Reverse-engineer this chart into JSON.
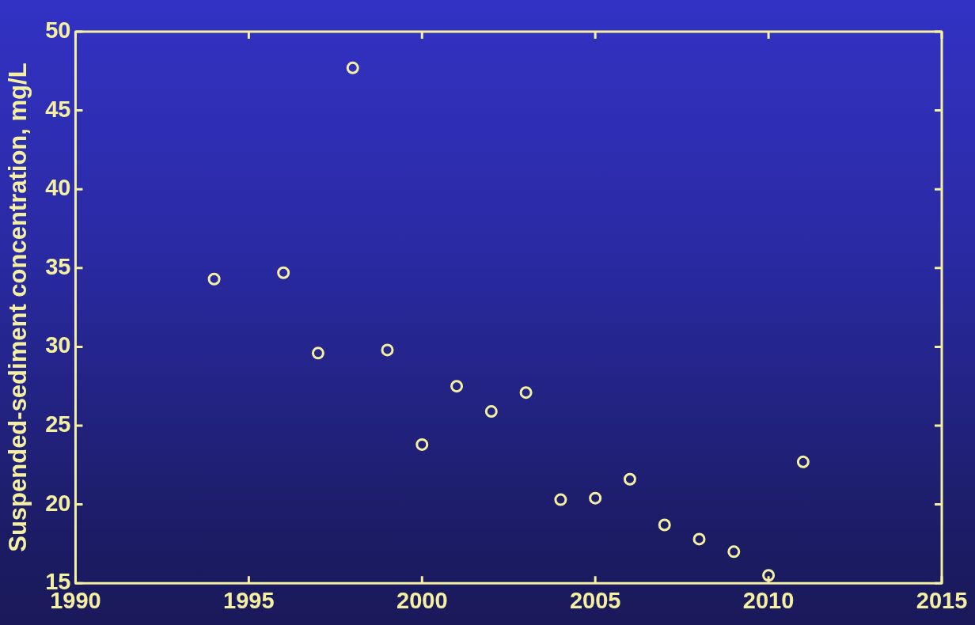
{
  "chart_data": {
    "type": "scatter",
    "ylabel": "Suspended-sediment concentration, mg/L",
    "x": [
      1994,
      1996,
      1997,
      1998,
      1999,
      2000,
      2001,
      2002,
      2003,
      2004,
      2005,
      2006,
      2007,
      2008,
      2009,
      2010,
      2011
    ],
    "series": [
      {
        "color": "#f5f0a0",
        "values": [
          34.3,
          34.7,
          29.6,
          47.7,
          29.8,
          23.8,
          27.5,
          25.9,
          27.1,
          20.3,
          20.4,
          21.6,
          18.7,
          17.8,
          17.0,
          15.5,
          22.7
        ]
      }
    ],
    "xlim": [
      1990,
      2015
    ],
    "xticks": [
      1990,
      1995,
      2000,
      2005,
      2010,
      2015
    ],
    "ylim": [
      15,
      50
    ],
    "yticks": [
      15,
      20,
      25,
      30,
      35,
      40,
      45,
      50
    ],
    "marker": "circle"
  }
}
